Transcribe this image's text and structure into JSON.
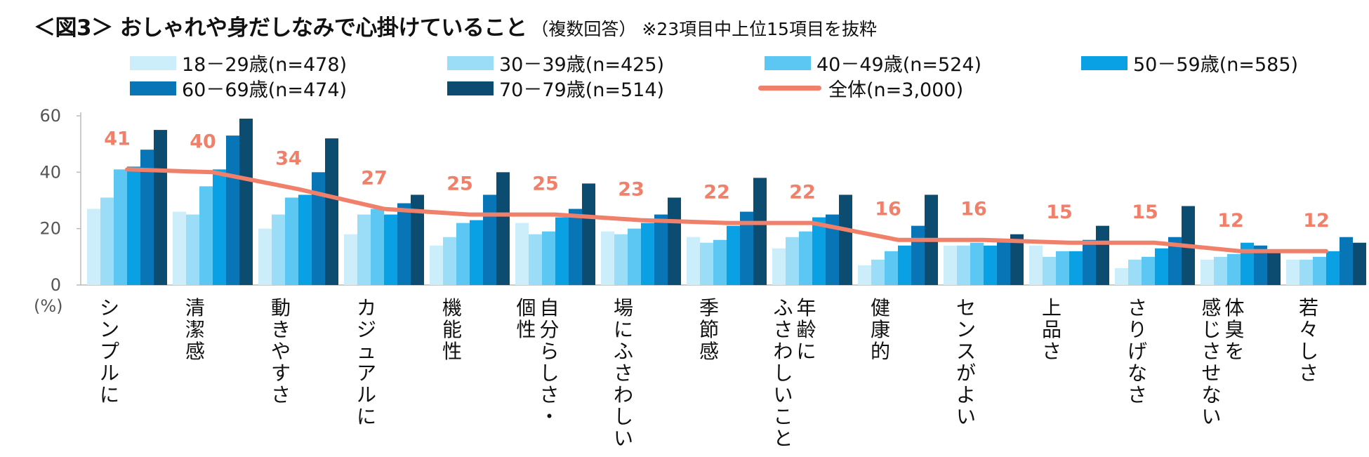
{
  "title": {
    "main": "＜図3＞ おしゃれや身だしなみで心掛けていること",
    "sub": "（複数回答）",
    "note": "※23項目中上位15項目を抜粋"
  },
  "colors": {
    "series": [
      "#CCEEFB",
      "#9BDDF6",
      "#5CC7F2",
      "#0AA0E4",
      "#0875B6",
      "#0C4C70"
    ],
    "total_line": "#F0806A",
    "axis": "#BBBBBB"
  },
  "chart_data": {
    "type": "bar",
    "ylabel": "(%)",
    "ylim": [
      0,
      60
    ],
    "yticks": [
      "0",
      "20",
      "40",
      "60"
    ],
    "categories": [
      [
        "シンプルに"
      ],
      [
        "清潔感"
      ],
      [
        "動きやすさ"
      ],
      [
        "カジュアルに"
      ],
      [
        "機能性"
      ],
      [
        "自分らしさ・",
        "個性"
      ],
      [
        "場にふさわしい"
      ],
      [
        "季節感"
      ],
      [
        "年齢に",
        "ふさわしいこと"
      ],
      [
        "健康的"
      ],
      [
        "センスがよい"
      ],
      [
        "上品さ"
      ],
      [
        "さりげなさ"
      ],
      [
        "体臭を",
        "感じさせない"
      ],
      [
        "若々しさ"
      ]
    ],
    "series": [
      {
        "name": "18－29歳(n=478)",
        "values": [
          27,
          26,
          20,
          18,
          14,
          22,
          19,
          17,
          13,
          7,
          14,
          14,
          6,
          9,
          9
        ]
      },
      {
        "name": "30－39歳(n=425)",
        "values": [
          31,
          25,
          25,
          25,
          17,
          18,
          18,
          15,
          17,
          9,
          14,
          10,
          9,
          10,
          9
        ]
      },
      {
        "name": "40－49歳(n=524)",
        "values": [
          41,
          35,
          31,
          27,
          22,
          19,
          20,
          16,
          19,
          12,
          15,
          12,
          10,
          11,
          10
        ]
      },
      {
        "name": "50－59歳(n=585)",
        "values": [
          42,
          41,
          32,
          25,
          23,
          24,
          22,
          21,
          24,
          14,
          14,
          12,
          13,
          15,
          12
        ]
      },
      {
        "name": "60－69歳(n=474)",
        "values": [
          48,
          53,
          40,
          29,
          32,
          27,
          25,
          26,
          25,
          21,
          16,
          16,
          17,
          14,
          17
        ]
      },
      {
        "name": "70－79歳(n=514)",
        "values": [
          55,
          59,
          52,
          32,
          40,
          36,
          31,
          38,
          32,
          32,
          18,
          21,
          28,
          12,
          15
        ]
      }
    ],
    "total": {
      "name": "全体(n=3,000)",
      "values": [
        41,
        40,
        34,
        27,
        25,
        25,
        23,
        22,
        22,
        16,
        16,
        15,
        15,
        12,
        12
      ]
    },
    "total_labels": [
      "41",
      "40",
      "34",
      "27",
      "25",
      "25",
      "23",
      "22",
      "22",
      "16",
      "16",
      "15",
      "15",
      "12",
      "12"
    ]
  }
}
